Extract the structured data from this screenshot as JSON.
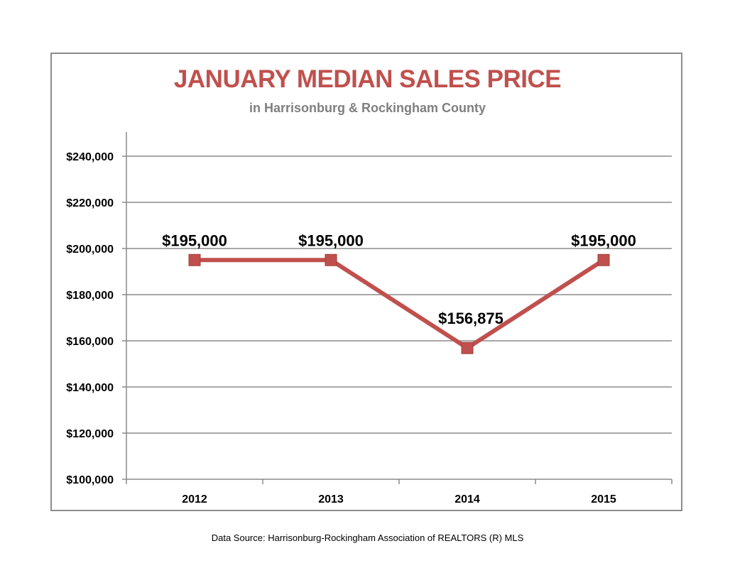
{
  "chart_data": {
    "type": "line",
    "title": "JANUARY MEDIAN SALES PRICE",
    "subtitle": "in Harrisonburg  & Rockingham County",
    "categories": [
      "2012",
      "2013",
      "2014",
      "2015"
    ],
    "series": [
      {
        "values": [
          195000,
          195000,
          156875,
          195000
        ],
        "data_labels": [
          "$195,000",
          "$195,000",
          "$156,875",
          "$195,000"
        ],
        "color": "#c0504d"
      }
    ],
    "yticks": [
      100000,
      120000,
      140000,
      160000,
      180000,
      200000,
      220000,
      240000
    ],
    "ytick_labels": [
      "$100,000",
      "$120,000",
      "$140,000",
      "$160,000",
      "$180,000",
      "$200,000",
      "$220,000",
      "$240,000"
    ],
    "ylim": [
      100000,
      250000
    ],
    "xlabel": "",
    "ylabel": "",
    "grid": true,
    "legend": "none"
  },
  "footer": {
    "source": "Data Source: Harrisonburg-Rockingham Association of REALTORS (R) MLS"
  },
  "colors": {
    "title": "#c0504d",
    "subtitle": "#7f7f7f",
    "grid": "#8c8c8c",
    "series": "#c0504d"
  }
}
